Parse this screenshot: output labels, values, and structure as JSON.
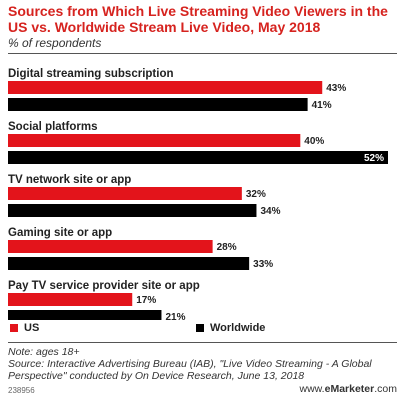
{
  "title": "Sources from Which Live Streaming Video Viewers in the US vs. Worldwide Stream Live Video, May 2018",
  "subtitle": "% of respondents",
  "colors": {
    "us": "#e3141b",
    "worldwide": "#000000",
    "title": "#d6231f"
  },
  "legend": {
    "us": "US",
    "worldwide": "Worldwide"
  },
  "chart_data": {
    "type": "bar",
    "orientation": "horizontal",
    "categories": [
      "Digital streaming subscription",
      "Social platforms",
      "TV network site or app",
      "Gaming site or app",
      "Pay TV service provider site or app"
    ],
    "series": [
      {
        "name": "US",
        "values": [
          43,
          40,
          32,
          28,
          17
        ]
      },
      {
        "name": "Worldwide",
        "values": [
          41,
          52,
          34,
          33,
          21
        ]
      }
    ],
    "value_suffix": "%",
    "xlim": [
      0,
      52
    ],
    "grid": false,
    "legend_position": "bottom"
  },
  "notes": {
    "line1": "Note: ages 18+",
    "line2": "Source: Interactive Advertising Bureau (IAB), \"Live Video Streaming - A Global Perspective\" conducted by On Device Research, June 13, 2018"
  },
  "chart_id": "238956",
  "brand": {
    "prefix": "www.",
    "name": "eMarketer",
    "suffix": ".com"
  }
}
